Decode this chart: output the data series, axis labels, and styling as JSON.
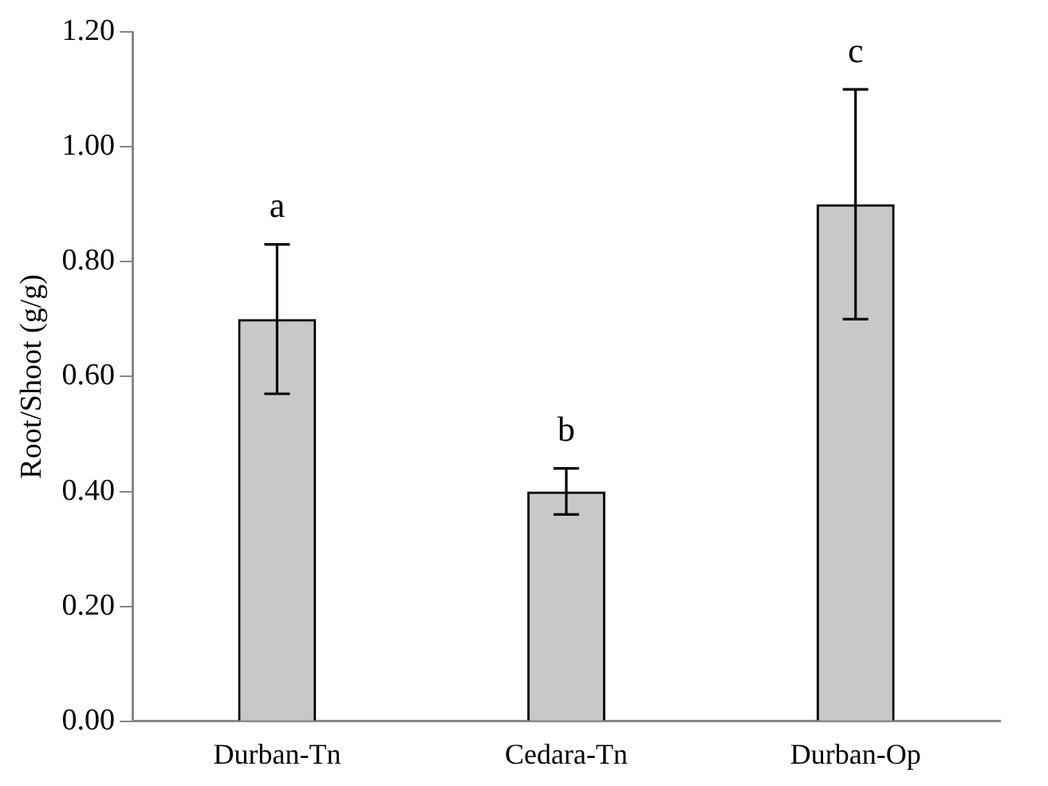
{
  "chart_data": {
    "type": "bar",
    "ylabel": "Root/Shoot (g/g)",
    "categories": [
      "Durban-Tn",
      "Cedara-Tn",
      "Durban-Op"
    ],
    "values": [
      0.7,
      0.4,
      0.9
    ],
    "errors": [
      [
        0.57,
        0.83
      ],
      [
        0.36,
        0.44
      ],
      [
        0.7,
        1.1
      ]
    ],
    "color": "#c8c8c8",
    "ylim": [
      0,
      1.2
    ],
    "yticks": [
      {
        "value": 0,
        "label": "0.00"
      },
      {
        "value": 0.2,
        "label": "0.20"
      },
      {
        "value": 0.4,
        "label": "0.40"
      },
      {
        "value": 0.6,
        "label": "0.60"
      },
      {
        "value": 0.8,
        "label": "0.80"
      },
      {
        "value": 1.0,
        "label": "1.00"
      },
      {
        "value": 1.2,
        "label": "1.20"
      }
    ],
    "annotations": [
      {
        "text": "a",
        "x": "Durban-Tn",
        "y": 0.83
      },
      {
        "text": "b",
        "x": "Cedara-Tn",
        "y": 0.44
      },
      {
        "text": "c",
        "x": "Durban-Op",
        "y": 1.1
      }
    ],
    "grid": false,
    "legend": false
  }
}
